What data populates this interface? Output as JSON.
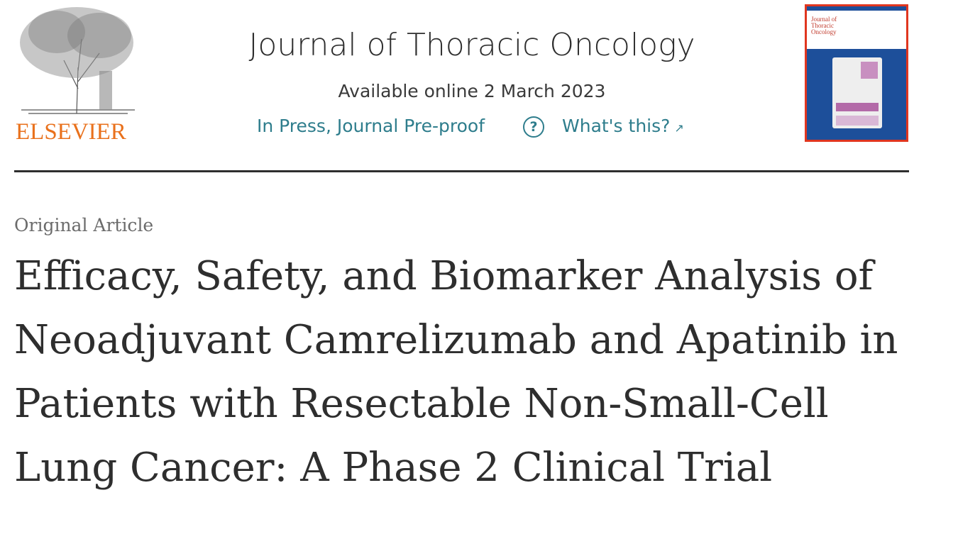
{
  "publisher": {
    "logo_text": "ELSEVIER",
    "logo_color": "#e9711c"
  },
  "journal": {
    "title": "Journal of Thoracic Oncology",
    "available_online": "Available online 2 March 2023",
    "status": "In Press, Journal Pre-proof",
    "help_icon": "question-circle-icon",
    "whats_this": "What's this?",
    "external_icon": "external-arrow-icon",
    "link_color": "#2e7d8c"
  },
  "cover": {
    "title_text": "Journal of Thoracic Oncology",
    "colors": {
      "frame": "#e0361f",
      "body": "#1d4f9a"
    }
  },
  "article": {
    "type": "Original Article",
    "title": "Efficacy, Safety, and Biomarker Analysis of Neoadjuvant Camrelizumab and Apatinib in Patients with Resectable Non-Small-Cell Lung Cancer: A Phase 2 Clinical Trial"
  }
}
